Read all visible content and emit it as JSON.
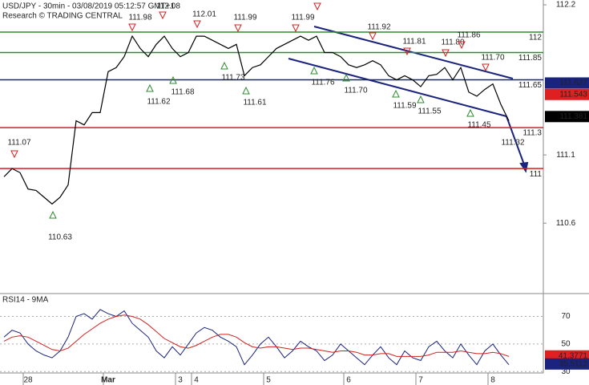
{
  "chart_data": {
    "type": "line",
    "title": "USD/JPY - 30min - 03/08/2019 05:12:57 GMT+1",
    "subtitle": "Research © TRADING CENTRAL",
    "x": [
      null,
      null,
      null,
      "28",
      null,
      null,
      null,
      null,
      null,
      null,
      null,
      null,
      null,
      "Mar",
      null,
      null,
      null,
      null,
      null,
      null,
      null,
      null,
      "3",
      null,
      "4",
      null,
      null,
      null,
      null,
      null,
      null,
      null,
      null,
      "5",
      null,
      null,
      null,
      null,
      null,
      null,
      null,
      null,
      null,
      "6",
      null,
      null,
      null,
      null,
      null,
      null,
      null,
      null,
      "7",
      null,
      null,
      null,
      null,
      null,
      null,
      null,
      null,
      "8",
      null,
      null
    ],
    "series": [
      {
        "name": "USD/JPY",
        "color": "#000000",
        "values": [
          110.94,
          111.0,
          110.97,
          110.85,
          110.84,
          110.79,
          110.74,
          110.79,
          110.88,
          111.35,
          111.32,
          111.41,
          111.41,
          111.71,
          111.74,
          111.82,
          111.97,
          111.88,
          111.82,
          111.91,
          111.97,
          111.88,
          111.82,
          111.85,
          111.97,
          111.97,
          111.94,
          111.91,
          111.88,
          111.91,
          111.68,
          111.74,
          111.76,
          111.82,
          111.88,
          111.91,
          111.94,
          111.97,
          111.94,
          111.97,
          111.85,
          111.85,
          111.82,
          111.76,
          111.74,
          111.76,
          111.79,
          111.76,
          111.68,
          111.65,
          111.68,
          111.65,
          111.6,
          111.68,
          111.69,
          111.74,
          111.65,
          111.74,
          111.56,
          111.53,
          111.58,
          111.62,
          111.47,
          111.35
        ]
      }
    ],
    "ylim": [
      110.09,
      112.235
    ],
    "yticks": [
      112.2,
      111.1,
      110.6
    ],
    "levels": [
      {
        "value": 112,
        "color": "#2e8b2e"
      },
      {
        "value": 111.85,
        "color": "#2e8b2e"
      },
      {
        "value": 111.65,
        "color": "#1a237e"
      },
      {
        "value": 111.3,
        "color": "#d42020"
      },
      {
        "value": 111,
        "color": "#d42020"
      }
    ],
    "price_tags": [
      {
        "value": 111.627,
        "color": "#1a237e"
      },
      {
        "value": 111.543,
        "color": "#e02020"
      },
      {
        "value": 111.381,
        "color": "#000000"
      }
    ],
    "annotations": [
      "111.07",
      "111.98",
      "112.08",
      "112.01",
      "111.99",
      "111.99",
      "111.92",
      "111.81",
      "111.80",
      "111.86",
      "111.70",
      "110.63",
      "111.62",
      "111.68",
      "111.73",
      "111.61",
      "111.76",
      "111.70",
      "111.59",
      "111.55",
      "111.45",
      "111.32"
    ],
    "rsi": {
      "title": "RSI14 - 9MA",
      "ylim": [
        29,
        86
      ],
      "yticks": [
        70,
        50,
        30
      ],
      "series": [
        {
          "name": "RSI14",
          "color": "#1a237e",
          "values": [
            55,
            60,
            58,
            50,
            45,
            42,
            40,
            45,
            55,
            70,
            72,
            68,
            75,
            72,
            70,
            74,
            65,
            60,
            55,
            45,
            40,
            48,
            42,
            50,
            58,
            62,
            60,
            55,
            52,
            48,
            35,
            42,
            50,
            55,
            48,
            40,
            45,
            52,
            48,
            45,
            38,
            42,
            50,
            45,
            40,
            35,
            42,
            48,
            40,
            35,
            45,
            40,
            38,
            48,
            52,
            45,
            40,
            50,
            42,
            35,
            45,
            50,
            42,
            35
          ]
        },
        {
          "name": "9MA",
          "color": "#d42020",
          "values": [
            52,
            55,
            56,
            55,
            52,
            49,
            46,
            45,
            47,
            52,
            57,
            61,
            65,
            68,
            70,
            71,
            70,
            68,
            64,
            59,
            54,
            51,
            48,
            47,
            49,
            52,
            55,
            57,
            57,
            55,
            51,
            48,
            47,
            48,
            48,
            47,
            46,
            47,
            47,
            46,
            45,
            44,
            45,
            45,
            44,
            42,
            42,
            43,
            43,
            41,
            41,
            41,
            41,
            42,
            44,
            44,
            44,
            45,
            44,
            43,
            43,
            44,
            43,
            41
          ]
        }
      ],
      "tags": [
        {
          "value": 41.3771,
          "color": "#e02020"
        },
        {
          "value": 35.5112,
          "color": "#1a237e"
        }
      ]
    }
  }
}
